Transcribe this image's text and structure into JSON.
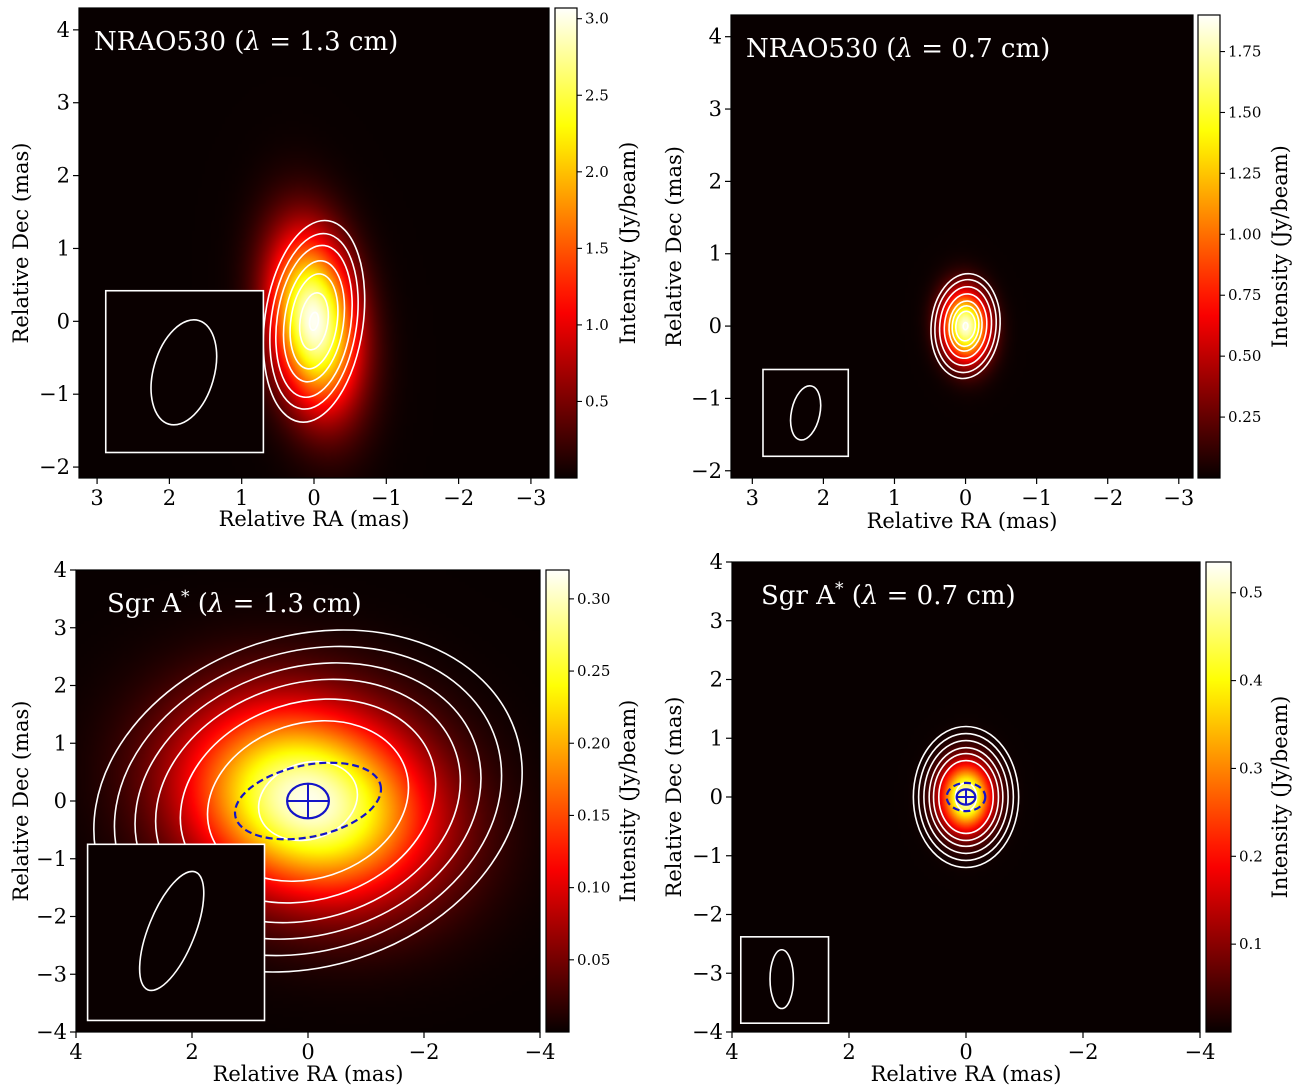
{
  "chart_data": [
    {
      "type": "heatmap",
      "title": "NRAO530 (λ = 1.3 cm)",
      "source": "NRAO530",
      "wavelength": "λ = 1.3 cm",
      "xlabel": "Relative RA (mas)",
      "ylabel": "Relative Dec (mas)",
      "colorbar_label": "Intensity (Jy/beam)",
      "colormap": "hot",
      "xlim": [
        3.25,
        -3.25
      ],
      "ylim": [
        -2.15,
        4.3
      ],
      "xticks": [
        3,
        2,
        1,
        0,
        -1,
        -2,
        -3
      ],
      "xtick_labels": [
        "3",
        "2",
        "1",
        "0",
        "−1",
        "−2",
        "−3"
      ],
      "yticks": [
        -2,
        -1,
        0,
        1,
        2,
        3,
        4
      ],
      "ytick_labels": [
        "−2",
        "−1",
        "0",
        "1",
        "2",
        "3",
        "4"
      ],
      "vlim": [
        0.0,
        3.07
      ],
      "cticks": [
        0.5,
        1.0,
        1.5,
        2.0,
        2.5,
        3.0
      ],
      "ctick_labels": [
        "0.5",
        "1.0",
        "1.5",
        "2.0",
        "2.5",
        "3.0"
      ],
      "peak_intensity": 3.05,
      "source_model": {
        "x": 0.0,
        "y": 0.0,
        "sigma_x": 0.4,
        "sigma_y": 0.82,
        "pa_deg": 8
      },
      "contour_scale": [
        0.15,
        0.48,
        0.8,
        1.02,
        1.28,
        1.48,
        1.7
      ],
      "beam": {
        "x": 1.8,
        "y": -0.7,
        "a": 0.42,
        "b": 0.74,
        "pa_deg": 16
      },
      "beam_box": {
        "x0": 2.88,
        "x1": 0.7,
        "y0": -1.8,
        "y1": 0.42
      }
    },
    {
      "type": "heatmap",
      "title": "NRAO530 (λ = 0.7 cm)",
      "source": "NRAO530",
      "wavelength": "λ = 0.7 cm",
      "xlabel": "Relative RA (mas)",
      "ylabel": "Relative Dec (mas)",
      "colorbar_label": "Intensity (Jy/beam)",
      "colormap": "hot",
      "xlim": [
        3.3,
        -3.2
      ],
      "ylim": [
        -2.1,
        4.3
      ],
      "xticks": [
        3,
        2,
        1,
        0,
        -1,
        -2,
        -3
      ],
      "xtick_labels": [
        "3",
        "2",
        "1",
        "0",
        "−1",
        "−2",
        "−3"
      ],
      "yticks": [
        -2,
        -1,
        0,
        1,
        2,
        3,
        4
      ],
      "ytick_labels": [
        "−2",
        "−1",
        "0",
        "1",
        "2",
        "3",
        "4"
      ],
      "vlim": [
        0.0,
        1.9
      ],
      "cticks": [
        0.25,
        0.5,
        0.75,
        1.0,
        1.25,
        1.5,
        1.75
      ],
      "ctick_labels": [
        "0.25",
        "0.50",
        "0.75",
        "1.00",
        "1.25",
        "1.50",
        "1.75"
      ],
      "peak_intensity": 1.85,
      "source_model": {
        "x": 0.0,
        "y": 0.0,
        "sigma_x": 0.22,
        "sigma_y": 0.33,
        "pa_deg": 5
      },
      "contour_scale": [
        0.15,
        0.62,
        0.85,
        1.05,
        1.35,
        1.65,
        1.95,
        2.2
      ],
      "beam": {
        "x": 2.25,
        "y": -1.2,
        "a": 0.2,
        "b": 0.38,
        "pa_deg": 12
      },
      "beam_box": {
        "x0": 2.85,
        "x1": 1.65,
        "y0": -1.8,
        "y1": -0.6
      }
    },
    {
      "type": "heatmap",
      "title": "Sgr A* (λ = 1.3 cm)",
      "source": "Sgr A",
      "source_superscript": "*",
      "wavelength": "λ = 1.3 cm",
      "xlabel": "Relative RA (mas)",
      "ylabel": "Relative Dec (mas)",
      "colorbar_label": "Intensity (Jy/beam)",
      "colormap": "hot",
      "xlim": [
        4,
        -4
      ],
      "ylim": [
        -4,
        4
      ],
      "xticks": [
        4,
        2,
        0,
        -2,
        -4
      ],
      "xtick_labels": [
        "4",
        "2",
        "0",
        "−2",
        "−4"
      ],
      "yticks": [
        -4,
        -3,
        -2,
        -1,
        0,
        1,
        2,
        3,
        4
      ],
      "ytick_labels": [
        "−4",
        "−3",
        "−2",
        "−1",
        "0",
        "1",
        "2",
        "3",
        "4"
      ],
      "vlim": [
        0.0,
        0.32
      ],
      "cticks": [
        0.05,
        0.1,
        0.15,
        0.2,
        0.25,
        0.3
      ],
      "ctick_labels": [
        "0.05",
        "0.10",
        "0.15",
        "0.20",
        "0.25",
        "0.30"
      ],
      "peak_intensity": 0.315,
      "source_model": {
        "x": 0.0,
        "y": 0.0,
        "sigma_x": 1.45,
        "sigma_y": 1.1,
        "pa_deg": -18
      },
      "contour_scale": [
        0.6,
        1.22,
        1.55,
        1.85,
        2.1,
        2.35,
        2.6
      ],
      "beam": {
        "x": 2.35,
        "y": -2.25,
        "a": 0.4,
        "b": 1.1,
        "pa_deg": 22
      },
      "beam_box": {
        "x0": 3.8,
        "x1": 0.75,
        "y0": -3.8,
        "y1": -0.75
      },
      "model_dashed_ellipse": {
        "x": 0.0,
        "y": 0.0,
        "a": 1.28,
        "b": 0.62,
        "pa_deg": -12
      },
      "model_solid_ellipse": {
        "x": 0.0,
        "y": 0.0,
        "a": 0.36,
        "b": 0.3,
        "pa_deg": 0
      }
    },
    {
      "type": "heatmap",
      "title": "Sgr A* (λ = 0.7 cm)",
      "source": "Sgr A",
      "source_superscript": "*",
      "wavelength": "λ = 0.7 cm",
      "xlabel": "Relative RA (mas)",
      "ylabel": "Relative Dec (mas)",
      "colorbar_label": "Intensity (Jy/beam)",
      "colormap": "hot",
      "xlim": [
        4,
        -4
      ],
      "ylim": [
        -4,
        4
      ],
      "xticks": [
        4,
        2,
        0,
        -2,
        -4
      ],
      "xtick_labels": [
        "4",
        "2",
        "0",
        "−2",
        "−4"
      ],
      "yticks": [
        -4,
        -3,
        -2,
        -1,
        0,
        1,
        2,
        3,
        4
      ],
      "ytick_labels": [
        "−4",
        "−3",
        "−2",
        "−1",
        "0",
        "1",
        "2",
        "3",
        "4"
      ],
      "vlim": [
        0.0,
        0.535
      ],
      "cticks": [
        0.1,
        0.2,
        0.3,
        0.4,
        0.5
      ],
      "ctick_labels": [
        "0.1",
        "0.2",
        "0.3",
        "0.4",
        "0.5"
      ],
      "peak_intensity": 0.52,
      "source_model": {
        "x": 0.0,
        "y": 0.0,
        "sigma_x": 0.3,
        "sigma_y": 0.4,
        "pa_deg": 0
      },
      "contour_scale": [
        0.6,
        1.55,
        1.85,
        2.1,
        2.4,
        2.7,
        3.0
      ],
      "beam": {
        "x": 3.15,
        "y": -3.1,
        "a": 0.2,
        "b": 0.5,
        "pa_deg": 0
      },
      "beam_box": {
        "x0": 3.85,
        "x1": 2.35,
        "y0": -3.85,
        "y1": -2.38
      },
      "model_dashed_ellipse": {
        "x": 0.0,
        "y": 0.0,
        "a": 0.33,
        "b": 0.24,
        "pa_deg": 0
      },
      "model_solid_ellipse": {
        "x": 0.0,
        "y": 0.0,
        "a": 0.16,
        "b": 0.13,
        "pa_deg": 0
      }
    }
  ]
}
